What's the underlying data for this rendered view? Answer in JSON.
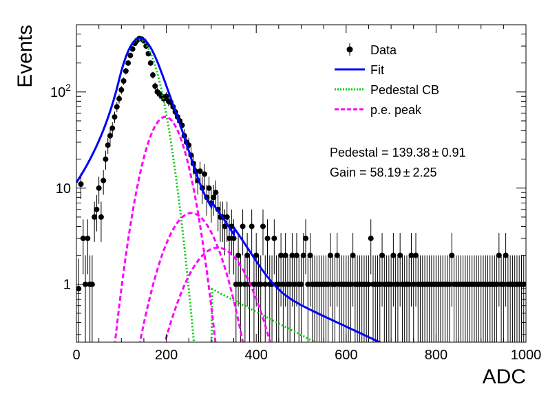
{
  "chart_data": {
    "type": "scatter",
    "title": "",
    "xlabel": "ADC",
    "ylabel": "Events",
    "xlim": [
      0,
      1000
    ],
    "ylim": [
      0.25,
      500
    ],
    "yscale": "log",
    "grid": false,
    "legend_position": "top-right",
    "x_ticks": [
      {
        "value": 0,
        "label": "0"
      },
      {
        "value": 200,
        "label": "200"
      },
      {
        "value": 400,
        "label": "400"
      },
      {
        "value": 600,
        "label": "600"
      },
      {
        "value": 800,
        "label": "800"
      },
      {
        "value": 1000,
        "label": "1000"
      }
    ],
    "y_ticks": [
      {
        "value": 1,
        "label": "1"
      },
      {
        "value": 10,
        "label": "10"
      },
      {
        "value": 100,
        "label": "10",
        "exp": "2"
      }
    ],
    "legend": [
      {
        "key": "data",
        "label": "Data"
      },
      {
        "key": "fit",
        "label": "Fit"
      },
      {
        "key": "pedestal",
        "label": "Pedestal CB"
      },
      {
        "key": "pe",
        "label": "p.e. peak"
      }
    ],
    "annotations": [
      {
        "text": "Pedestal = 139.38",
        "pm": "0.91"
      },
      {
        "text": "Gain = 58.19",
        "pm": "2.25"
      }
    ],
    "colors": {
      "data": "#000000",
      "fit": "#0000ff",
      "pedestal": "#00cc00",
      "pe": "#ff00ff"
    },
    "parameters": {
      "pedestal_mean": 139.38,
      "pedestal_sigma": 32,
      "pedestal_amplitude": 350,
      "gain": 58.19,
      "pe_peaks": [
        {
          "mean": 197.57,
          "sigma": 34,
          "amplitude": 55
        },
        {
          "mean": 255.76,
          "sigma": 46,
          "amplitude": 5.5
        },
        {
          "mean": 313.95,
          "sigma": 55,
          "amplitude": 2.4
        }
      ]
    },
    "data_points": [
      {
        "x": 5,
        "y": 0.9
      },
      {
        "x": 10,
        "y": 11
      },
      {
        "x": 15,
        "y": 3
      },
      {
        "x": 20,
        "y": 1
      },
      {
        "x": 25,
        "y": 3
      },
      {
        "x": 30,
        "y": 1
      },
      {
        "x": 35,
        "y": 1
      },
      {
        "x": 40,
        "y": 5
      },
      {
        "x": 45,
        "y": 6
      },
      {
        "x": 50,
        "y": 10
      },
      {
        "x": 55,
        "y": 5
      },
      {
        "x": 60,
        "y": 12
      },
      {
        "x": 65,
        "y": 20
      },
      {
        "x": 70,
        "y": 28
      },
      {
        "x": 75,
        "y": 35
      },
      {
        "x": 80,
        "y": 42
      },
      {
        "x": 85,
        "y": 55
      },
      {
        "x": 90,
        "y": 70
      },
      {
        "x": 95,
        "y": 85
      },
      {
        "x": 100,
        "y": 105
      },
      {
        "x": 105,
        "y": 130
      },
      {
        "x": 110,
        "y": 165
      },
      {
        "x": 115,
        "y": 200
      },
      {
        "x": 120,
        "y": 240
      },
      {
        "x": 125,
        "y": 280
      },
      {
        "x": 130,
        "y": 320
      },
      {
        "x": 135,
        "y": 345
      },
      {
        "x": 140,
        "y": 360
      },
      {
        "x": 145,
        "y": 355
      },
      {
        "x": 150,
        "y": 340
      },
      {
        "x": 155,
        "y": 300
      },
      {
        "x": 160,
        "y": 250
      },
      {
        "x": 165,
        "y": 200
      },
      {
        "x": 170,
        "y": 150
      },
      {
        "x": 175,
        "y": 115
      },
      {
        "x": 180,
        "y": 100
      },
      {
        "x": 185,
        "y": 95
      },
      {
        "x": 190,
        "y": 90
      },
      {
        "x": 195,
        "y": 85
      },
      {
        "x": 200,
        "y": 90
      },
      {
        "x": 205,
        "y": 80
      },
      {
        "x": 210,
        "y": 78
      },
      {
        "x": 215,
        "y": 70
      },
      {
        "x": 220,
        "y": 62
      },
      {
        "x": 225,
        "y": 55
      },
      {
        "x": 230,
        "y": 50
      },
      {
        "x": 235,
        "y": 45
      },
      {
        "x": 240,
        "y": 35
      },
      {
        "x": 245,
        "y": 30
      },
      {
        "x": 250,
        "y": 28
      },
      {
        "x": 255,
        "y": 22
      },
      {
        "x": 260,
        "y": 18
      },
      {
        "x": 265,
        "y": 15
      },
      {
        "x": 270,
        "y": 12
      },
      {
        "x": 275,
        "y": 15
      },
      {
        "x": 280,
        "y": 10
      },
      {
        "x": 285,
        "y": 14
      },
      {
        "x": 290,
        "y": 8
      },
      {
        "x": 295,
        "y": 10
      },
      {
        "x": 300,
        "y": 7
      },
      {
        "x": 305,
        "y": 8
      },
      {
        "x": 310,
        "y": 9
      },
      {
        "x": 315,
        "y": 6
      },
      {
        "x": 320,
        "y": 5
      },
      {
        "x": 325,
        "y": 5
      },
      {
        "x": 330,
        "y": 4
      },
      {
        "x": 335,
        "y": 5
      },
      {
        "x": 340,
        "y": 3
      },
      {
        "x": 345,
        "y": 4
      },
      {
        "x": 350,
        "y": 3
      },
      {
        "x": 355,
        "y": 1
      },
      {
        "x": 360,
        "y": 2
      },
      {
        "x": 365,
        "y": 1
      },
      {
        "x": 370,
        "y": 4
      },
      {
        "x": 375,
        "y": 1
      },
      {
        "x": 380,
        "y": 2
      },
      {
        "x": 385,
        "y": 1
      },
      {
        "x": 390,
        "y": 4
      },
      {
        "x": 395,
        "y": 1
      },
      {
        "x": 400,
        "y": 2
      },
      {
        "x": 405,
        "y": 1
      },
      {
        "x": 410,
        "y": 1
      },
      {
        "x": 415,
        "y": 4
      },
      {
        "x": 420,
        "y": 1
      },
      {
        "x": 425,
        "y": 3
      },
      {
        "x": 430,
        "y": 1
      },
      {
        "x": 435,
        "y": 1
      },
      {
        "x": 440,
        "y": 3
      },
      {
        "x": 445,
        "y": 1
      },
      {
        "x": 450,
        "y": 1
      },
      {
        "x": 455,
        "y": 2
      },
      {
        "x": 460,
        "y": 1
      },
      {
        "x": 465,
        "y": 2
      },
      {
        "x": 470,
        "y": 1
      },
      {
        "x": 475,
        "y": 1
      },
      {
        "x": 480,
        "y": 2
      },
      {
        "x": 485,
        "y": 1
      },
      {
        "x": 490,
        "y": 2
      },
      {
        "x": 495,
        "y": 1
      },
      {
        "x": 500,
        "y": 1
      },
      {
        "x": 505,
        "y": 2
      },
      {
        "x": 510,
        "y": 3
      },
      {
        "x": 515,
        "y": 1
      },
      {
        "x": 520,
        "y": 2
      },
      {
        "x": 525,
        "y": 1
      },
      {
        "x": 530,
        "y": 1
      },
      {
        "x": 535,
        "y": 1
      },
      {
        "x": 540,
        "y": 1
      },
      {
        "x": 545,
        "y": 1
      },
      {
        "x": 550,
        "y": 1
      },
      {
        "x": 555,
        "y": 1
      },
      {
        "x": 560,
        "y": 1
      },
      {
        "x": 565,
        "y": 2
      },
      {
        "x": 570,
        "y": 1
      },
      {
        "x": 575,
        "y": 1
      },
      {
        "x": 580,
        "y": 2
      },
      {
        "x": 585,
        "y": 1
      },
      {
        "x": 590,
        "y": 1
      },
      {
        "x": 595,
        "y": 1
      },
      {
        "x": 600,
        "y": 1
      },
      {
        "x": 605,
        "y": 1
      },
      {
        "x": 610,
        "y": 1
      },
      {
        "x": 615,
        "y": 2
      },
      {
        "x": 620,
        "y": 1
      },
      {
        "x": 625,
        "y": 1
      },
      {
        "x": 630,
        "y": 1
      },
      {
        "x": 635,
        "y": 1
      },
      {
        "x": 640,
        "y": 1
      },
      {
        "x": 645,
        "y": 1
      },
      {
        "x": 650,
        "y": 1
      },
      {
        "x": 655,
        "y": 3
      },
      {
        "x": 660,
        "y": 1
      },
      {
        "x": 665,
        "y": 1
      },
      {
        "x": 670,
        "y": 1
      },
      {
        "x": 675,
        "y": 1
      },
      {
        "x": 680,
        "y": 2
      },
      {
        "x": 685,
        "y": 1
      },
      {
        "x": 690,
        "y": 1
      },
      {
        "x": 695,
        "y": 1
      },
      {
        "x": 700,
        "y": 1
      },
      {
        "x": 705,
        "y": 2
      },
      {
        "x": 710,
        "y": 1
      },
      {
        "x": 715,
        "y": 1
      },
      {
        "x": 720,
        "y": 2
      },
      {
        "x": 725,
        "y": 1
      },
      {
        "x": 730,
        "y": 1
      },
      {
        "x": 735,
        "y": 1
      },
      {
        "x": 740,
        "y": 1
      },
      {
        "x": 745,
        "y": 2
      },
      {
        "x": 750,
        "y": 1
      },
      {
        "x": 755,
        "y": 2
      },
      {
        "x": 760,
        "y": 1
      },
      {
        "x": 765,
        "y": 1
      },
      {
        "x": 770,
        "y": 1
      },
      {
        "x": 775,
        "y": 1
      },
      {
        "x": 780,
        "y": 1
      },
      {
        "x": 785,
        "y": 1
      },
      {
        "x": 790,
        "y": 1
      },
      {
        "x": 795,
        "y": 1
      },
      {
        "x": 800,
        "y": 1
      },
      {
        "x": 805,
        "y": 1
      },
      {
        "x": 810,
        "y": 1
      },
      {
        "x": 815,
        "y": 1
      },
      {
        "x": 820,
        "y": 1
      },
      {
        "x": 825,
        "y": 1
      },
      {
        "x": 830,
        "y": 1
      },
      {
        "x": 835,
        "y": 2
      },
      {
        "x": 840,
        "y": 1
      },
      {
        "x": 845,
        "y": 1
      },
      {
        "x": 850,
        "y": 1
      },
      {
        "x": 855,
        "y": 1
      },
      {
        "x": 860,
        "y": 1
      },
      {
        "x": 865,
        "y": 1
      },
      {
        "x": 870,
        "y": 1
      },
      {
        "x": 875,
        "y": 1
      },
      {
        "x": 880,
        "y": 1
      },
      {
        "x": 885,
        "y": 1
      },
      {
        "x": 890,
        "y": 1
      },
      {
        "x": 895,
        "y": 1
      },
      {
        "x": 900,
        "y": 1
      },
      {
        "x": 905,
        "y": 1
      },
      {
        "x": 910,
        "y": 1
      },
      {
        "x": 915,
        "y": 1
      },
      {
        "x": 920,
        "y": 1
      },
      {
        "x": 925,
        "y": 1
      },
      {
        "x": 930,
        "y": 1
      },
      {
        "x": 935,
        "y": 1
      },
      {
        "x": 940,
        "y": 2
      },
      {
        "x": 945,
        "y": 1
      },
      {
        "x": 950,
        "y": 1
      },
      {
        "x": 955,
        "y": 2
      },
      {
        "x": 960,
        "y": 1
      },
      {
        "x": 965,
        "y": 1
      },
      {
        "x": 970,
        "y": 1
      },
      {
        "x": 975,
        "y": 1
      },
      {
        "x": 980,
        "y": 1
      },
      {
        "x": 985,
        "y": 1
      },
      {
        "x": 990,
        "y": 1
      },
      {
        "x": 995,
        "y": 1
      }
    ]
  }
}
